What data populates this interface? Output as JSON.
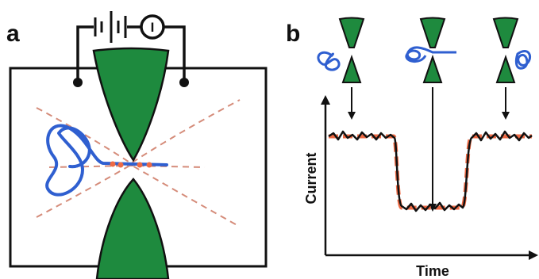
{
  "figure": {
    "panel_a_label": "a",
    "panel_b_label": "b",
    "meter_symbol": "I",
    "y_axis_label": "Current",
    "x_axis_label": "Time"
  },
  "colors": {
    "electrode": "#1e8a3e",
    "molecule": "#2f5fd0",
    "field_lines": "#d58c7a",
    "fit_trace": "#ee6a44",
    "wire": "#111111",
    "measured_trace": "#111111"
  },
  "icons": {
    "battery": "battery-icon",
    "ammeter": "ammeter-icon",
    "molecule": "polymer-coil-icon",
    "electrode": "electrode-tip-icon"
  }
}
